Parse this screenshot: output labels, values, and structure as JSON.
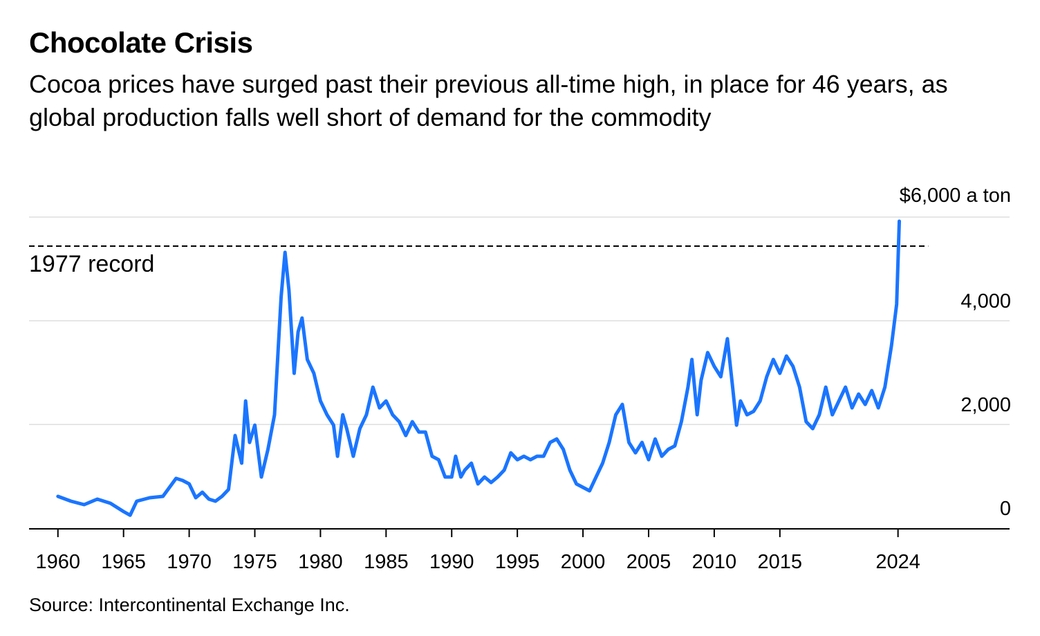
{
  "header": {
    "title": "Chocolate Crisis",
    "subtitle": "Cocoa prices have surged past their previous all-time high, in place for 46 years, as global production falls well short of demand for the commodity"
  },
  "footer": {
    "source": "Source: Intercontinental Exchange Inc."
  },
  "chart_data": {
    "type": "line",
    "title": "Chocolate Crisis",
    "ylabel": "$ a ton",
    "xlim": [
      1957.8,
      2032.5
    ],
    "ylim": [
      0,
      6000
    ],
    "grid": true,
    "color": "#1a75ff",
    "y_ticks": [
      {
        "value": 0,
        "label": "0"
      },
      {
        "value": 2000,
        "label": "2,000"
      },
      {
        "value": 4000,
        "label": "4,000"
      },
      {
        "value": 6000,
        "label": "$6,000 a ton"
      }
    ],
    "x_ticks": [
      {
        "value": 1960,
        "label": "1960"
      },
      {
        "value": 1965,
        "label": "1965"
      },
      {
        "value": 1970,
        "label": "1970"
      },
      {
        "value": 1975,
        "label": "1975"
      },
      {
        "value": 1980,
        "label": "1980"
      },
      {
        "value": 1985,
        "label": "1985"
      },
      {
        "value": 1990,
        "label": "1990"
      },
      {
        "value": 1995,
        "label": "1995"
      },
      {
        "value": 2000,
        "label": "2000"
      },
      {
        "value": 2005,
        "label": "2005"
      },
      {
        "value": 2010,
        "label": "2010"
      },
      {
        "value": 2015,
        "label": "2015"
      },
      {
        "value": 2024,
        "label": "2024"
      }
    ],
    "annotation": {
      "label": "1977 record",
      "value": 5440,
      "x_range": [
        1957.8,
        2026.3
      ]
    },
    "series": [
      {
        "name": "Cocoa price",
        "x": [
          1960,
          1961,
          1962,
          1963,
          1964,
          1965,
          1965.5,
          1966,
          1967,
          1968,
          1969,
          1969.5,
          1970,
          1970.5,
          1971,
          1971.5,
          1972,
          1972.5,
          1973,
          1973.5,
          1974,
          1974.3,
          1974.6,
          1975,
          1975.5,
          1976,
          1976.5,
          1977,
          1977.3,
          1977.6,
          1978,
          1978.3,
          1978.6,
          1979,
          1979.5,
          1980,
          1980.5,
          1981,
          1981.3,
          1981.7,
          1982,
          1982.5,
          1983,
          1983.5,
          1984,
          1984.5,
          1985,
          1985.5,
          1986,
          1986.5,
          1987,
          1987.5,
          1988,
          1988.5,
          1989,
          1989.5,
          1990,
          1990.3,
          1990.7,
          1991,
          1991.5,
          1992,
          1992.5,
          1993,
          1993.5,
          1994,
          1994.5,
          1995,
          1995.5,
          1996,
          1996.5,
          1997,
          1997.5,
          1998,
          1998.5,
          1999,
          1999.5,
          2000,
          2000.5,
          2001,
          2001.5,
          2002,
          2002.5,
          2003,
          2003.5,
          2004,
          2004.5,
          2005,
          2005.5,
          2006,
          2006.5,
          2007,
          2007.5,
          2008,
          2008.3,
          2008.7,
          2009,
          2009.5,
          2010,
          2010.5,
          2011,
          2011.4,
          2011.7,
          2012,
          2012.5,
          2013,
          2013.5,
          2014,
          2014.5,
          2015,
          2015.5,
          2016,
          2016.5,
          2017,
          2017.5,
          2018,
          2018.5,
          2019,
          2019.5,
          2020,
          2020.5,
          2021,
          2021.5,
          2022,
          2022.5,
          2023,
          2023.5,
          2023.9,
          2024.1
        ],
        "y": [
          613,
          520,
          453,
          560,
          480,
          320,
          250,
          520,
          587,
          613,
          960,
          920,
          853,
          587,
          693,
          560,
          520,
          613,
          747,
          1787,
          1253,
          2453,
          1653,
          1987,
          987,
          1520,
          2187,
          4453,
          5320,
          4587,
          2987,
          3787,
          4053,
          3253,
          2987,
          2453,
          2187,
          1987,
          1387,
          2187,
          1920,
          1387,
          1920,
          2187,
          2720,
          2320,
          2453,
          2187,
          2053,
          1787,
          2053,
          1853,
          1853,
          1387,
          1320,
          987,
          987,
          1387,
          987,
          1120,
          1253,
          853,
          987,
          880,
          987,
          1120,
          1453,
          1320,
          1387,
          1320,
          1387,
          1387,
          1653,
          1720,
          1520,
          1120,
          853,
          787,
          720,
          987,
          1253,
          1653,
          2187,
          2387,
          1653,
          1453,
          1653,
          1320,
          1720,
          1387,
          1520,
          1587,
          2053,
          2720,
          3253,
          2187,
          2853,
          3387,
          3120,
          2920,
          3653,
          2720,
          1987,
          2453,
          2187,
          2253,
          2453,
          2920,
          3253,
          2987,
          3320,
          3120,
          2720,
          2053,
          1920,
          2187,
          2720,
          2187,
          2453,
          2720,
          2320,
          2587,
          2387,
          2653,
          2320,
          2720,
          3520,
          4320,
          5920
        ]
      }
    ]
  }
}
